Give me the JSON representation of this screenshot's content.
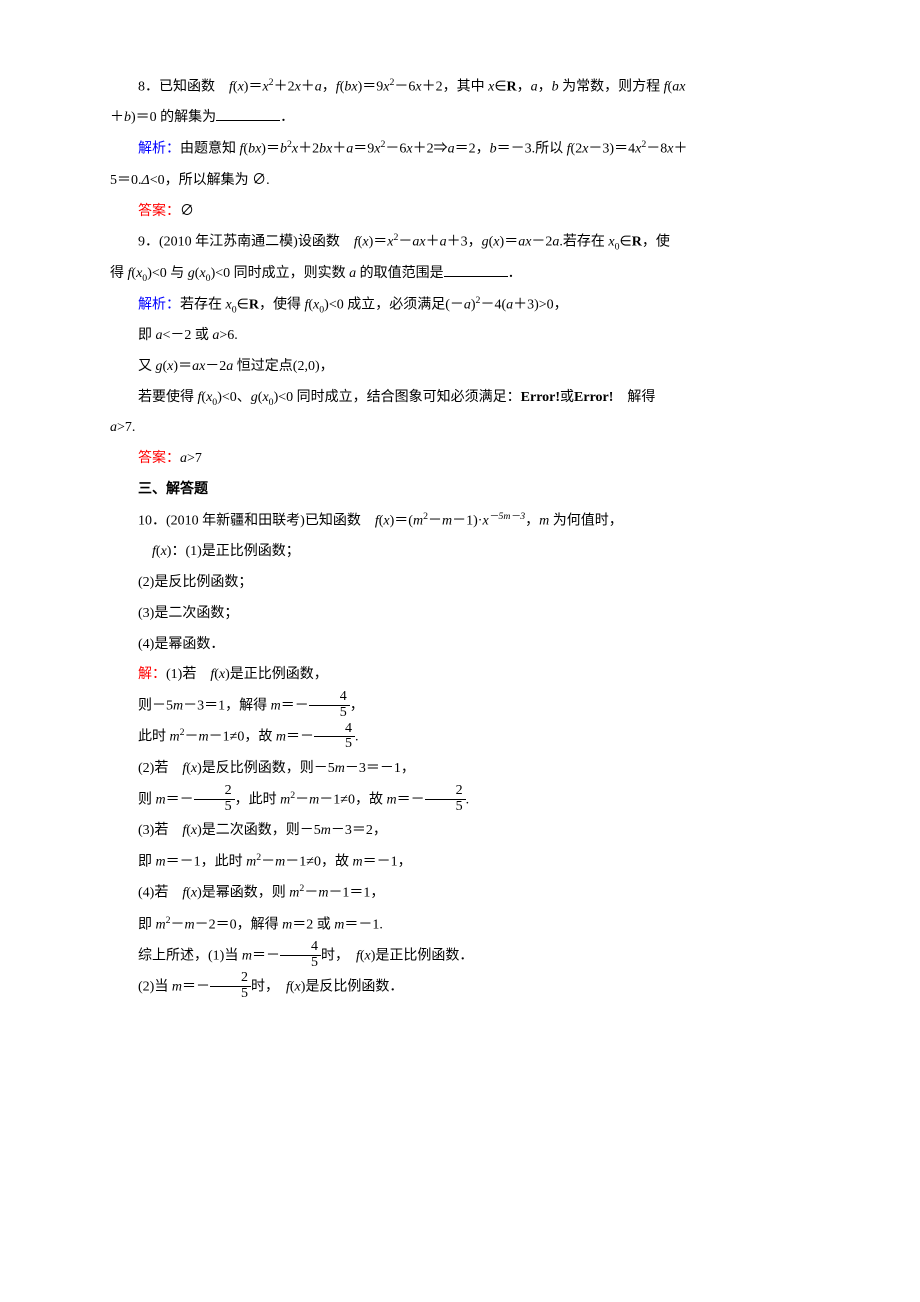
{
  "colors": {
    "text": "#000000",
    "blue": "#0000ff",
    "red": "#ff0000",
    "bg": "#ffffff"
  },
  "c": {
    "p8a": "8．已知函数　",
    "p8b": "＝",
    "p8c": "＋2",
    "p8d": "＋",
    "p8e": "，",
    "p8f": "＝9",
    "p8g": "－6",
    "p8h": "＋2，其中 ",
    "p8i": "∈",
    "p8j": "，",
    "p8k": "，",
    "p8l": " 为常数，则方程 ",
    "p8m": "＋",
    "p8n": "＝0 的解集为",
    "p8o": "．",
    "jx8a": "解析：",
    "jx8b": "由题意知 ",
    "jx8c": "＝",
    "jx8d": "＋2",
    "jx8e": "＋",
    "jx8f": "＝9",
    "jx8g": "－6",
    "jx8h": "＋2⇒",
    "jx8i": "＝2，",
    "jx8j": "＝－3.所以 ",
    "jx8k": "(2",
    "jx8l": "－3)＝4",
    "jx8m": "－8",
    "jx8n": "＋",
    "jx8o": "5＝0.",
    "jx8p": "<0，所以解集为 ∅.",
    "da8a": "答案：",
    "da8b": "∅",
    "p9a": "9．(2010 年江苏南通二模)设函数　",
    "p9b": "＝",
    "p9c": "－",
    "p9d": "＋",
    "p9e": "＋3，",
    "p9f": "＝",
    "p9g": "－2",
    "p9h": ".若存在 ",
    "p9i": "∈",
    "p9j": "，使",
    "p9k": "得 ",
    "p9l": "<0 与 ",
    "p9m": "<0 同时成立，则实数 ",
    "p9n": " 的取值范围是",
    "p9o": "．",
    "jx9a": "解析：",
    "jx9b": "若存在 ",
    "jx9c": "∈",
    "jx9d": "，使得 ",
    "jx9e": "<0 成立，必须满足(－",
    "jx9f": ")",
    "jx9g": "－4(",
    "jx9h": "＋3)>0，",
    "jx9i": "即 ",
    "jx9j": "<－2 或 ",
    "jx9k": ">6.",
    "jx9l": "又 ",
    "jx9m": "＝",
    "jx9n": "－2",
    "jx9o": " 恒过定点(2,0)，",
    "jx9p": "若要使得 ",
    "jx9q": "<0、",
    "jx9r": "<0 同时成立，结合图象可知必须满足：",
    "err1": "Error!",
    "jx9s": "或",
    "err2": "Error!",
    "jx9t": "　解得",
    "jx9u": ">7.",
    "da9a": "答案：",
    "da9b": ">7",
    "p10hdr": "三、解答题",
    "p10a": "10．(2010 年新疆和田联考)已知函数　",
    "p10b": "＝(",
    "p10c": "－",
    "p10d": "－1)·",
    "p10g": "，",
    "p10h": " 为何值时，",
    "p10i": "：(1)是正比例函数；",
    "p10j": "(2)是反比例函数；",
    "p10k": "(3)是二次函数；",
    "p10l": "(4)是幂函数．",
    "jie": "解：",
    "s1a": "(1)若　",
    "s1b": "是正比例函数，",
    "s1c": "则－5",
    "s1d": "－3＝1，解得 ",
    "s1e": "＝－",
    "s1f": "，",
    "s1g": "此时 ",
    "s1h": "－",
    "s1i": "－1≠0，故 ",
    "s1j": "＝－",
    "s1k": ".",
    "s2a": "(2)若　",
    "s2b": "是反比例函数，则－5",
    "s2c": "－3＝－1，",
    "s2d": "则 ",
    "s2e": "＝－",
    "s2f": "，此时 ",
    "s2g": "－",
    "s2h": "－1≠0，故 ",
    "s2i": "＝－",
    "s2j": ".",
    "s3a": "(3)若　",
    "s3b": "是二次函数，则－5",
    "s3c": "－3＝2，",
    "s3d": "即 ",
    "s3e": "＝－1，此时 ",
    "s3f": "－",
    "s3g": "－1≠0，故 ",
    "s3h": "＝－1，",
    "s4a": "(4)若　",
    "s4b": "是幂函数，则 ",
    "s4c": "－",
    "s4d": "－1＝1，",
    "s4e": "即 ",
    "s4f": "－",
    "s4g": "－2＝0，解得 ",
    "s4h": "＝2 或 ",
    "s4i": "＝－1.",
    "sum1": "综上所述，(1)当 ",
    "sum2": "＝－",
    "sum3": "时，　",
    "sum4": "是正比例函数．",
    "sum5": "(2)当 ",
    "sum6": "＝－",
    "sum7": "时，　",
    "sum8": "是反比例函数．",
    "frac45n": "4",
    "frac45d": "5",
    "frac25n": "2",
    "frac25d": "5",
    "f": "f",
    "g": "g",
    "x": "x",
    "a": "a",
    "b": "b",
    "m": "m",
    "R": "R",
    "D": "Δ",
    "x0": "x",
    "zero": "0",
    "two": "2",
    "fivem3": "－5m－3"
  }
}
